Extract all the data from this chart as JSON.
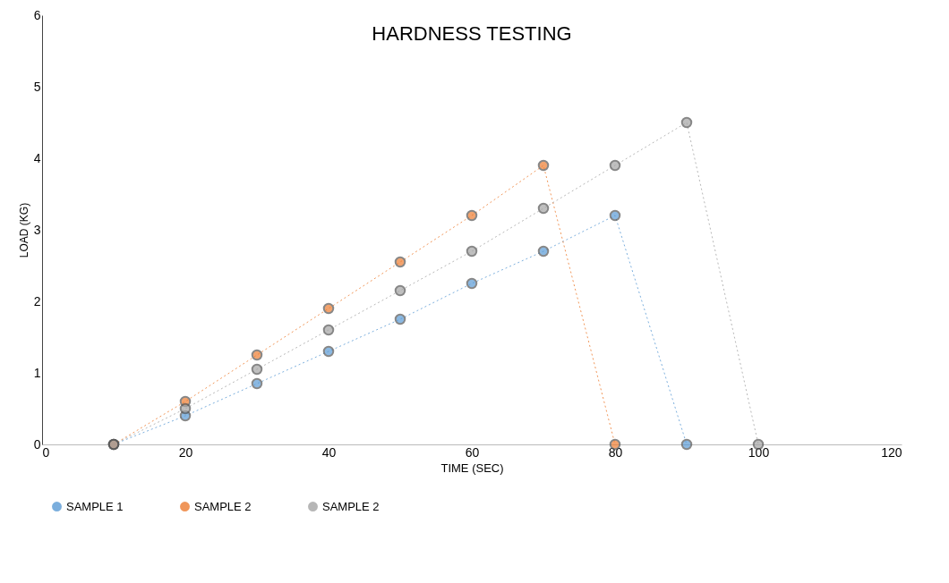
{
  "chart_data": {
    "type": "line",
    "title": "HARDNESS TESTING",
    "xlabel": "TIME (SEC)",
    "ylabel": "LOAD (KG)",
    "xlim": [
      0,
      120
    ],
    "xticks": [
      0,
      20,
      40,
      60,
      80,
      100,
      120
    ],
    "ylim": [
      0,
      6
    ],
    "yticks": [
      0,
      1,
      2,
      3,
      4,
      5,
      6
    ],
    "marker": "circle",
    "line_style": "dotted",
    "legend": "bottom",
    "series": [
      {
        "name": "SAMPLE 1",
        "color": "#5b9bd5",
        "x": [
          10,
          20,
          30,
          40,
          50,
          60,
          70,
          80,
          90
        ],
        "values": [
          0,
          0.4,
          0.85,
          1.3,
          1.75,
          2.25,
          2.7,
          3.2,
          0
        ]
      },
      {
        "name": "SAMPLE 2",
        "color": "#ed7d31",
        "x": [
          10,
          20,
          30,
          40,
          50,
          60,
          70,
          80
        ],
        "values": [
          0,
          0.6,
          1.25,
          1.9,
          2.55,
          3.2,
          3.9,
          0
        ]
      },
      {
        "name": "SAMPLE 2",
        "color": "#a5a5a5",
        "x": [
          10,
          20,
          30,
          40,
          50,
          60,
          70,
          80,
          90,
          100
        ],
        "values": [
          0,
          0.5,
          1.05,
          1.6,
          2.15,
          2.7,
          3.3,
          3.9,
          4.5,
          0
        ]
      }
    ]
  }
}
